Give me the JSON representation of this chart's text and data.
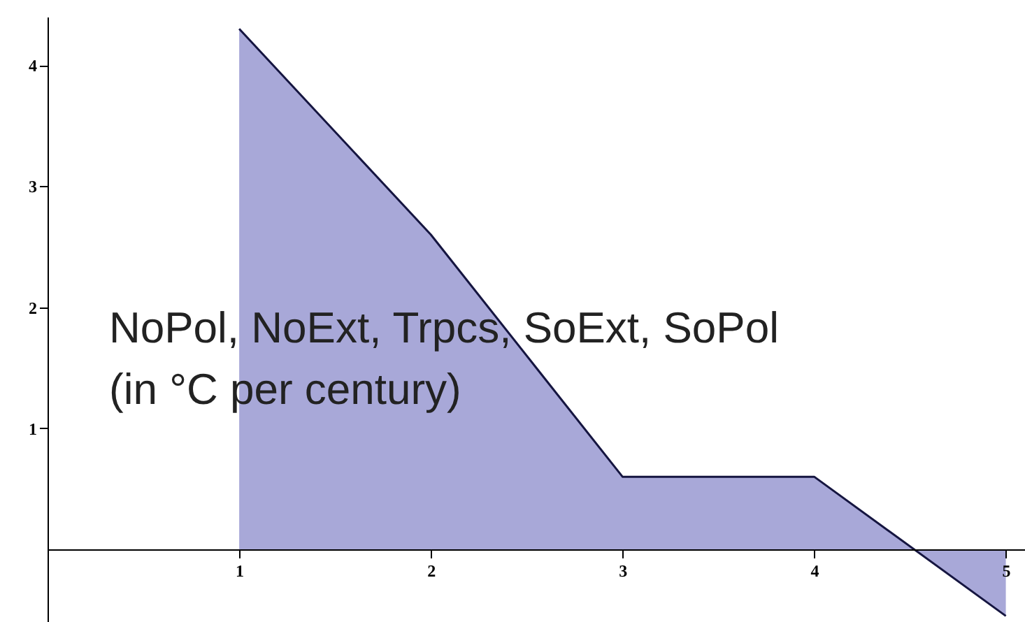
{
  "chart_data": {
    "type": "area",
    "x": [
      1,
      2,
      3,
      4,
      5
    ],
    "series": [
      {
        "color": "#a8a8d8",
        "values": [
          4.3,
          2.6,
          0.6,
          0.6,
          -0.55
        ]
      }
    ],
    "xlim": [
      0,
      5.1
    ],
    "ylim": [
      -0.6,
      4.4
    ],
    "xticks": [
      1,
      2,
      3,
      4,
      5
    ],
    "yticks": [
      1,
      2,
      3,
      4
    ],
    "annotations": [
      "NoPol, NoExt, Trpcs, SoExt, SoPol",
      "(in °C per century)"
    ],
    "grid": false
  }
}
